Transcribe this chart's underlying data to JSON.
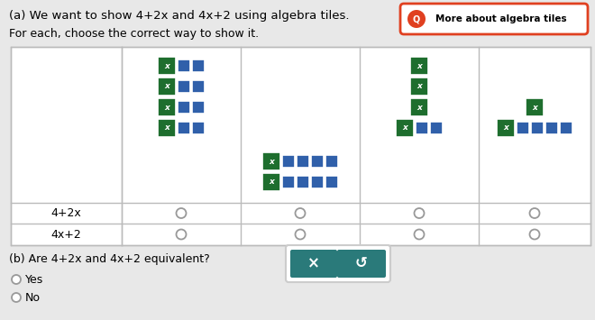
{
  "title_a": "(a) We want to show 4+2x and 4x+2 using algebra tiles.",
  "subtitle": "For each, choose the correct way to show it.",
  "more_about": "More about algebra tiles",
  "green_color": "#1e6e2e",
  "blue_color": "#3060aa",
  "bg_color": "#e8e8e8",
  "teal_color": "#2a7a7a",
  "radio_color": "#999999",
  "label_4plus2x": "4+2x",
  "label_4xplus2": "4x+2",
  "part_b_text": "(b) Are 4+2x and 4x+2 equivalent?",
  "yes_text": "Yes",
  "no_text": "No"
}
